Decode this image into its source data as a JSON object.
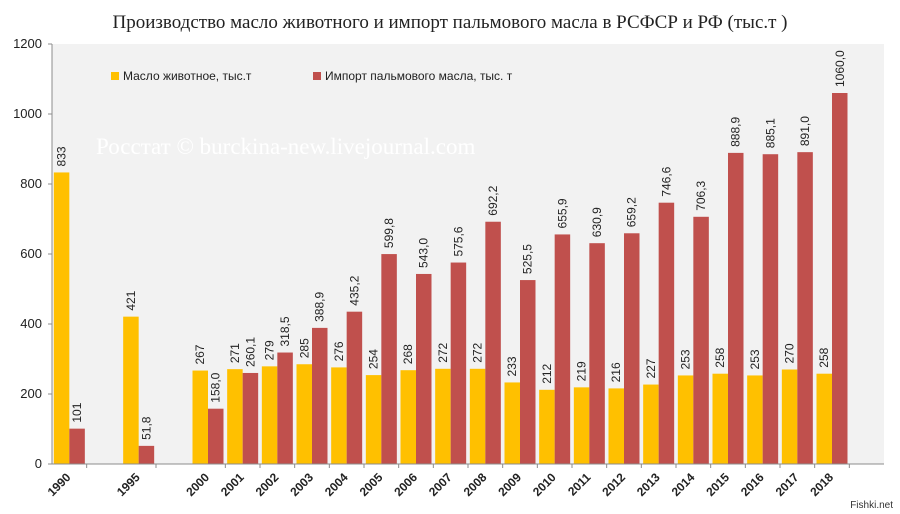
{
  "chart_data": {
    "type": "bar",
    "title": "Производство масло животного и импорт пальмового масла в РСФСР и РФ (тыс.т )",
    "watermark": "Росстат © burckina-new.livejournal.com",
    "source_mark": "Fishki.net",
    "xlabel": "",
    "ylabel": "",
    "ylim": [
      0,
      1200
    ],
    "yticks": [
      0,
      200,
      400,
      600,
      800,
      1000,
      1200
    ],
    "grid": false,
    "legend_position": "top",
    "categories": [
      "1990",
      "1995",
      "2000",
      "2001",
      "2002",
      "2003",
      "2004",
      "2005",
      "2006",
      "2007",
      "2008",
      "2009",
      "2010",
      "2011",
      "2012",
      "2013",
      "2014",
      "2015",
      "2016",
      "2017",
      "2018"
    ],
    "series": [
      {
        "name": "Масло животное, тыс.т",
        "color": "#ffc000",
        "values": [
          833,
          421,
          267,
          271,
          279,
          285,
          276,
          254,
          268,
          272,
          272,
          233,
          212,
          219,
          216,
          227,
          253,
          258,
          253,
          270,
          258
        ],
        "labels": [
          "833",
          "421",
          "267",
          "271",
          "279",
          "285",
          "276",
          "254",
          "268",
          "272",
          "272",
          "233",
          "212",
          "219",
          "216",
          "227",
          "253",
          "258",
          "253",
          "270",
          "258"
        ]
      },
      {
        "name": "Импорт пальмового масла, тыс. т",
        "color": "#c0504d",
        "values": [
          101,
          51.8,
          158.0,
          260.1,
          318.5,
          388.9,
          435.2,
          599.8,
          543.0,
          575.6,
          692.2,
          525.5,
          655.9,
          630.9,
          659.2,
          746.6,
          706.3,
          888.9,
          885.1,
          891.0,
          1060.0
        ],
        "labels": [
          "101",
          "51,8",
          "158,0",
          "260,1",
          "318,5",
          "388,9",
          "435,2",
          "599,8",
          "543,0",
          "575,6",
          "692,2",
          "525,5",
          "655,9",
          "630,9",
          "659,2",
          "746,6",
          "706,3",
          "888,9",
          "885,1",
          "891,0",
          "1060,0"
        ]
      }
    ]
  },
  "colors": {
    "plot_bg": "#f2f2f2",
    "axis": "#8c8c8c"
  }
}
